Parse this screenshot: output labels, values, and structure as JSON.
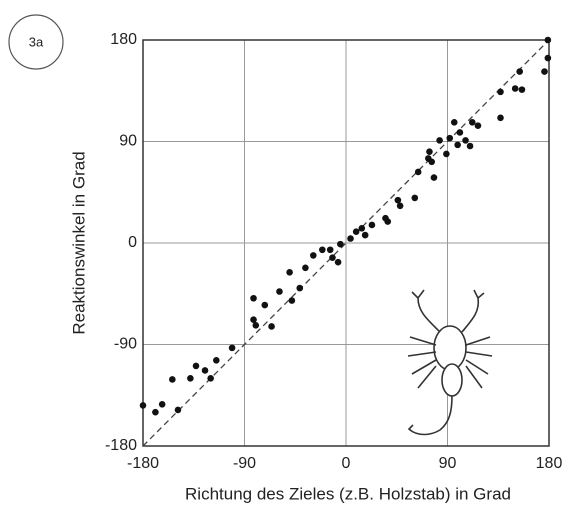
{
  "chart_data": {
    "type": "scatter",
    "panel_label": "3a",
    "xlabel": "Richtung des Zieles (z.B. Holzstab) in Grad",
    "ylabel": "Reaktionswinkel in Grad",
    "x": [
      -180,
      -169,
      -163,
      -154,
      -149,
      -138,
      -133,
      -125,
      -120,
      -115,
      -101,
      -82,
      -82,
      -80,
      -72,
      -66,
      -59,
      -50,
      -48,
      -41,
      -36,
      -29,
      -21,
      -14,
      -12,
      -7,
      -5,
      4,
      9,
      14,
      17,
      23,
      35,
      37,
      46,
      48,
      61,
      64,
      73,
      74,
      76,
      78,
      83,
      89,
      92,
      96,
      99,
      101,
      106,
      110,
      112,
      117,
      137,
      137,
      150,
      156,
      154,
      176,
      179,
      179
    ],
    "values": [
      -144,
      -150,
      -143,
      -121,
      -148,
      -120,
      -109,
      -113,
      -120,
      -104,
      -93,
      -49,
      -68,
      -73,
      -55,
      -74,
      -43,
      -26,
      -51,
      -40,
      -22,
      -11,
      -6,
      -6,
      -13,
      -17,
      -1,
      4,
      10,
      13,
      7,
      16,
      22,
      19,
      38,
      33,
      40,
      63,
      75,
      81,
      72,
      58,
      91,
      79,
      93,
      107,
      87,
      98,
      91,
      86,
      107,
      104,
      111,
      134,
      137,
      136,
      152,
      152,
      180,
      164
    ],
    "color": "#111",
    "xlim": [
      -180,
      180
    ],
    "ylim": [
      -180,
      180
    ],
    "xticks": [
      -180,
      -90,
      0,
      90,
      180
    ],
    "yticks": [
      -180,
      -90,
      0,
      90,
      180
    ],
    "grid": true
  }
}
